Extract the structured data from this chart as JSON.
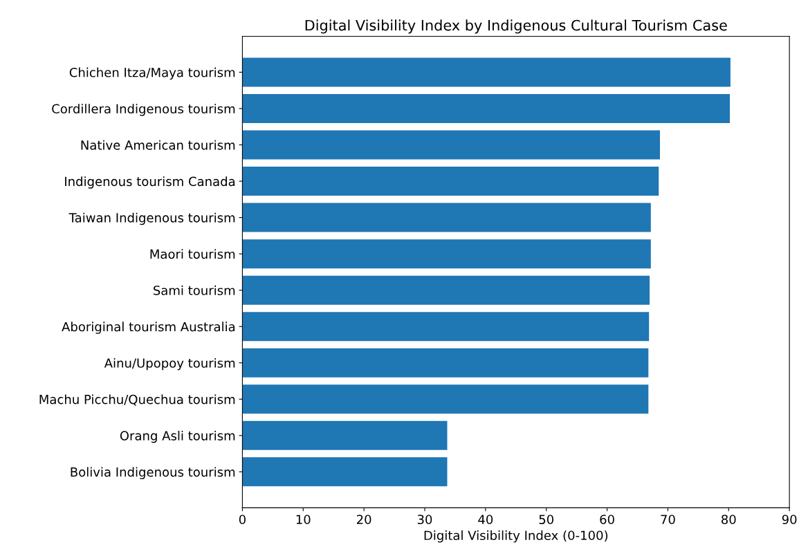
{
  "chart_data": {
    "type": "bar",
    "orientation": "horizontal",
    "title": "Digital Visibility Index by Indigenous Cultural Tourism Case",
    "xlabel": "Digital Visibility Index (0-100)",
    "categories": [
      "Chichen Itza/Maya tourism",
      "Cordillera Indigenous tourism",
      "Native American tourism",
      "Indigenous tourism Canada",
      "Taiwan Indigenous tourism",
      "Maori tourism",
      "Sami tourism",
      "Aboriginal tourism Australia",
      "Ainu/Upopoy tourism",
      "Machu Picchu/Quechua tourism",
      "Orang Asli tourism",
      "Bolivia Indigenous tourism"
    ],
    "values": [
      80.3,
      80.2,
      68.7,
      68.5,
      67.2,
      67.2,
      67.0,
      66.9,
      66.8,
      66.8,
      33.7,
      33.7
    ],
    "color": "#1f77b4",
    "xlim": [
      0,
      90
    ],
    "xticks": [
      0,
      10,
      20,
      30,
      40,
      50,
      60,
      70,
      80,
      90
    ],
    "grid": false,
    "legend": false
  }
}
